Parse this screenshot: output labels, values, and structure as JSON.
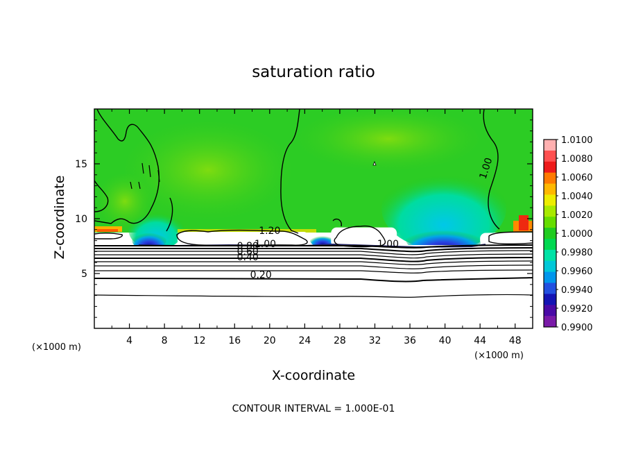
{
  "chart_data": {
    "type": "contour",
    "title": "saturation ratio",
    "xlabel": "X-coordinate",
    "ylabel": "Z-coordinate",
    "x_unit": "(×1000 m)",
    "x_unit_right": "(×1000 m)",
    "xlim": [
      0,
      50
    ],
    "ylim": [
      0,
      20
    ],
    "x_ticks": [
      "4",
      "8",
      "12",
      "16",
      "20",
      "24",
      "28",
      "32",
      "36",
      "40",
      "44",
      "48"
    ],
    "y_ticks": [
      "5",
      "10",
      "15"
    ],
    "footer": "CONTOUR INTERVAL = 1.000E-01",
    "colorbar": {
      "labels": [
        "1.0100",
        "1.0080",
        "1.0060",
        "1.0040",
        "1.0020",
        "1.0000",
        "0.9980",
        "0.9960",
        "0.9940",
        "0.9920",
        "0.9900"
      ],
      "colors": [
        "#ffb0b0",
        "#ff5050",
        "#ee1a1a",
        "#ff7a00",
        "#ffb800",
        "#eded00",
        "#a8ea00",
        "#66dd00",
        "#20cc20",
        "#00d850",
        "#00e2a6",
        "#00c8d8",
        "#0096ec",
        "#2250e0",
        "#1414b4",
        "#4a0aa6",
        "#7a1aa8"
      ]
    },
    "contour_labels": [
      {
        "text": "0.20",
        "x": 19.0,
        "y": 4.6
      },
      {
        "text": "0.40",
        "x": 17.5,
        "y": 6.2
      },
      {
        "text": "0.60",
        "x": 17.5,
        "y": 6.7
      },
      {
        "text": "0.80",
        "x": 17.5,
        "y": 7.2
      },
      {
        "text": "1.00",
        "x": 19.5,
        "y": 7.4
      },
      {
        "text": "1.20",
        "x": 20.0,
        "y": 8.6
      },
      {
        "text": "1.00",
        "x": 33.5,
        "y": 7.4
      },
      {
        "text": "1.00",
        "x": 45.0,
        "y": 14.5
      }
    ],
    "cloud_regions": [
      {
        "x": [
          9.5,
          24.5
        ],
        "y": [
          7.5,
          8.8
        ]
      },
      {
        "x": [
          27.0,
          34.5
        ],
        "y": [
          7.4,
          9.2
        ]
      },
      {
        "x": [
          44.0,
          50.0
        ],
        "y": [
          7.5,
          8.7
        ]
      }
    ]
  }
}
